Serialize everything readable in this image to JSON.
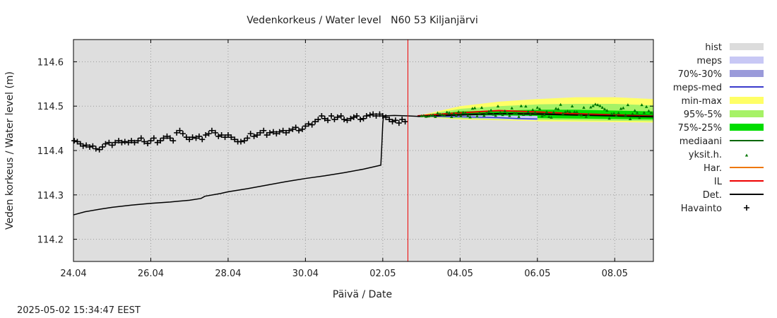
{
  "chart_data": {
    "type": "line",
    "title": "Vedenkorkeus / Water level   N60 53 Kiljanjärvi",
    "xlabel": "Päivä / Date",
    "ylabel": "Veden korkeus / Water level (m)",
    "timestamp": "2025-05-02 15:34:47 EEST",
    "x_range_days": [
      0,
      15
    ],
    "ylim": [
      114.15,
      114.65
    ],
    "x_ticks": [
      {
        "day": 0,
        "label": "24.04"
      },
      {
        "day": 2,
        "label": "26.04"
      },
      {
        "day": 4,
        "label": "28.04"
      },
      {
        "day": 6,
        "label": "30.04"
      },
      {
        "day": 8,
        "label": "02.05"
      },
      {
        "day": 10,
        "label": "04.05"
      },
      {
        "day": 12,
        "label": "06.05"
      },
      {
        "day": 14,
        "label": "08.05"
      }
    ],
    "y_ticks": [
      {
        "value": 114.2,
        "label": "114.2"
      },
      {
        "value": 114.3,
        "label": "114.3"
      },
      {
        "value": 114.4,
        "label": "114.4"
      },
      {
        "value": 114.5,
        "label": "114.5"
      },
      {
        "value": 114.6,
        "label": "114.6"
      }
    ],
    "forecast_start_day": 8.65,
    "legend": [
      {
        "key": "hist",
        "label": "hist",
        "color": "#dcdcdc",
        "style": "box"
      },
      {
        "key": "meps",
        "label": "meps",
        "color": "#c8c8f5",
        "style": "box"
      },
      {
        "key": "meps7030",
        "label": "70%-30%",
        "color": "#9a9ada",
        "style": "box"
      },
      {
        "key": "mepsmed",
        "label": "meps-med",
        "color": "#3a3acc",
        "style": "line"
      },
      {
        "key": "minmax",
        "label": "min-max",
        "color": "#ffff66",
        "style": "box"
      },
      {
        "key": "p955",
        "label": "95%-5%",
        "color": "#a6f266",
        "style": "box"
      },
      {
        "key": "p7525",
        "label": "75%-25%",
        "color": "#00dd00",
        "style": "box"
      },
      {
        "key": "mediaani",
        "label": "mediaani",
        "color": "#006600",
        "style": "line"
      },
      {
        "key": "yksit",
        "label": "yksit.h.",
        "color": "#007700",
        "style": "marker"
      },
      {
        "key": "har",
        "label": "Har.",
        "color": "#ee7700",
        "style": "line"
      },
      {
        "key": "il",
        "label": "IL",
        "color": "#ee0000",
        "style": "line"
      },
      {
        "key": "det",
        "label": "Det.",
        "color": "#000000",
        "style": "line"
      },
      {
        "key": "havainto",
        "label": "Havainto",
        "color": "#000000",
        "style": "plus"
      }
    ],
    "series": {
      "det_history": [
        [
          0.0,
          114.255
        ],
        [
          0.3,
          114.262
        ],
        [
          0.7,
          114.268
        ],
        [
          1.0,
          114.272
        ],
        [
          1.5,
          114.277
        ],
        [
          2.0,
          114.281
        ],
        [
          2.5,
          114.284
        ],
        [
          3.0,
          114.288
        ],
        [
          3.3,
          114.292
        ],
        [
          3.4,
          114.297
        ],
        [
          3.8,
          114.303
        ],
        [
          4.0,
          114.307
        ],
        [
          4.5,
          114.314
        ],
        [
          5.0,
          114.322
        ],
        [
          5.5,
          114.33
        ],
        [
          6.0,
          114.337
        ],
        [
          6.5,
          114.343
        ],
        [
          7.0,
          114.35
        ],
        [
          7.5,
          114.358
        ],
        [
          7.95,
          114.367
        ],
        [
          7.97,
          114.4
        ],
        [
          8.0,
          114.46
        ],
        [
          8.02,
          114.478
        ],
        [
          8.3,
          114.479
        ],
        [
          8.65,
          114.478
        ],
        [
          8.9,
          114.477
        ]
      ],
      "det_forecast": [
        [
          8.9,
          114.477
        ],
        [
          10.0,
          114.48
        ],
        [
          11.0,
          114.483
        ],
        [
          12.0,
          114.482
        ],
        [
          13.0,
          114.48
        ],
        [
          14.0,
          114.478
        ],
        [
          15.0,
          114.476
        ]
      ],
      "il_forecast": [
        [
          8.9,
          114.478
        ],
        [
          9.5,
          114.482
        ],
        [
          10.0,
          114.485
        ],
        [
          11.0,
          114.49
        ],
        [
          12.0,
          114.487
        ],
        [
          13.0,
          114.483
        ],
        [
          14.0,
          114.48
        ],
        [
          15.0,
          114.477
        ]
      ],
      "meps_median": [
        [
          8.9,
          114.477
        ],
        [
          9.5,
          114.477
        ],
        [
          10.0,
          114.476
        ],
        [
          11.0,
          114.474
        ],
        [
          11.5,
          114.472
        ],
        [
          12.0,
          114.471
        ]
      ],
      "meps_band": [
        [
          8.9,
          114.478,
          114.476
        ],
        [
          10.0,
          114.479,
          114.474
        ],
        [
          11.0,
          114.479,
          114.471
        ],
        [
          12.0,
          114.478,
          114.468
        ]
      ],
      "minmax_band": [
        [
          8.9,
          114.478,
          114.476
        ],
        [
          10.0,
          114.5,
          114.47
        ],
        [
          11.0,
          114.51,
          114.468
        ],
        [
          12.0,
          114.516,
          114.466
        ],
        [
          13.0,
          114.52,
          114.465
        ],
        [
          14.0,
          114.52,
          114.464
        ],
        [
          15.0,
          114.516,
          114.463
        ]
      ],
      "p955_band": [
        [
          8.9,
          114.478,
          114.476
        ],
        [
          10.0,
          114.494,
          114.472
        ],
        [
          11.0,
          114.5,
          114.47
        ],
        [
          12.0,
          114.504,
          114.469
        ],
        [
          13.0,
          114.505,
          114.468
        ],
        [
          14.0,
          114.505,
          114.467
        ],
        [
          15.0,
          114.502,
          114.466
        ]
      ],
      "p7525_band": [
        [
          8.9,
          114.478,
          114.476
        ],
        [
          10.0,
          114.488,
          114.474
        ],
        [
          11.0,
          114.49,
          114.474
        ],
        [
          12.0,
          114.492,
          114.473
        ],
        [
          13.0,
          114.492,
          114.472
        ],
        [
          14.0,
          114.49,
          114.471
        ],
        [
          15.0,
          114.488,
          114.47
        ]
      ],
      "median_line": [
        [
          8.9,
          114.477
        ],
        [
          10.0,
          114.482
        ],
        [
          11.0,
          114.484
        ],
        [
          12.0,
          114.484
        ],
        [
          13.0,
          114.483
        ],
        [
          14.0,
          114.481
        ],
        [
          15.0,
          114.479
        ]
      ],
      "observations": [
        [
          0.02,
          114.422
        ],
        [
          0.1,
          114.42
        ],
        [
          0.18,
          114.415
        ],
        [
          0.25,
          114.41
        ],
        [
          0.33,
          114.412
        ],
        [
          0.42,
          114.408
        ],
        [
          0.5,
          114.41
        ],
        [
          0.58,
          114.404
        ],
        [
          0.67,
          114.402
        ],
        [
          0.75,
          114.408
        ],
        [
          0.83,
          114.415
        ],
        [
          0.92,
          114.418
        ],
        [
          1.0,
          114.412
        ],
        [
          1.08,
          114.418
        ],
        [
          1.17,
          114.422
        ],
        [
          1.25,
          114.418
        ],
        [
          1.33,
          114.42
        ],
        [
          1.42,
          114.418
        ],
        [
          1.5,
          114.422
        ],
        [
          1.58,
          114.418
        ],
        [
          1.67,
          114.422
        ],
        [
          1.75,
          114.428
        ],
        [
          1.83,
          114.42
        ],
        [
          1.92,
          114.416
        ],
        [
          2.0,
          114.422
        ],
        [
          2.08,
          114.428
        ],
        [
          2.17,
          114.418
        ],
        [
          2.25,
          114.422
        ],
        [
          2.33,
          114.428
        ],
        [
          2.42,
          114.432
        ],
        [
          2.5,
          114.428
        ],
        [
          2.58,
          114.422
        ],
        [
          2.67,
          114.44
        ],
        [
          2.75,
          114.445
        ],
        [
          2.83,
          114.438
        ],
        [
          2.92,
          114.43
        ],
        [
          3.0,
          114.425
        ],
        [
          3.08,
          114.43
        ],
        [
          3.17,
          114.428
        ],
        [
          3.25,
          114.432
        ],
        [
          3.33,
          114.425
        ],
        [
          3.42,
          114.435
        ],
        [
          3.5,
          114.438
        ],
        [
          3.58,
          114.445
        ],
        [
          3.67,
          114.44
        ],
        [
          3.75,
          114.432
        ],
        [
          3.83,
          114.435
        ],
        [
          3.92,
          114.43
        ],
        [
          4.0,
          114.435
        ],
        [
          4.08,
          114.43
        ],
        [
          4.17,
          114.425
        ],
        [
          4.25,
          114.42
        ],
        [
          4.33,
          114.42
        ],
        [
          4.42,
          114.422
        ],
        [
          4.5,
          114.428
        ],
        [
          4.58,
          114.438
        ],
        [
          4.67,
          114.432
        ],
        [
          4.75,
          114.435
        ],
        [
          4.83,
          114.44
        ],
        [
          4.92,
          114.445
        ],
        [
          5.0,
          114.435
        ],
        [
          5.08,
          114.44
        ],
        [
          5.17,
          114.442
        ],
        [
          5.25,
          114.438
        ],
        [
          5.33,
          114.442
        ],
        [
          5.42,
          114.445
        ],
        [
          5.5,
          114.44
        ],
        [
          5.58,
          114.445
        ],
        [
          5.67,
          114.448
        ],
        [
          5.75,
          114.452
        ],
        [
          5.83,
          114.445
        ],
        [
          5.92,
          114.448
        ],
        [
          6.0,
          114.455
        ],
        [
          6.08,
          114.46
        ],
        [
          6.17,
          114.458
        ],
        [
          6.25,
          114.465
        ],
        [
          6.33,
          114.47
        ],
        [
          6.42,
          114.478
        ],
        [
          6.5,
          114.472
        ],
        [
          6.58,
          114.468
        ],
        [
          6.67,
          114.478
        ],
        [
          6.75,
          114.47
        ],
        [
          6.83,
          114.475
        ],
        [
          6.92,
          114.478
        ],
        [
          7.0,
          114.47
        ],
        [
          7.08,
          114.468
        ],
        [
          7.17,
          114.472
        ],
        [
          7.25,
          114.475
        ],
        [
          7.33,
          114.478
        ],
        [
          7.42,
          114.47
        ],
        [
          7.5,
          114.472
        ],
        [
          7.58,
          114.478
        ],
        [
          7.67,
          114.48
        ],
        [
          7.75,
          114.482
        ],
        [
          7.83,
          114.478
        ],
        [
          7.92,
          114.482
        ],
        [
          8.0,
          114.478
        ],
        [
          8.08,
          114.475
        ],
        [
          8.17,
          114.47
        ],
        [
          8.25,
          114.465
        ],
        [
          8.33,
          114.468
        ],
        [
          8.42,
          114.462
        ],
        [
          8.5,
          114.47
        ],
        [
          8.58,
          114.465
        ]
      ]
    }
  }
}
